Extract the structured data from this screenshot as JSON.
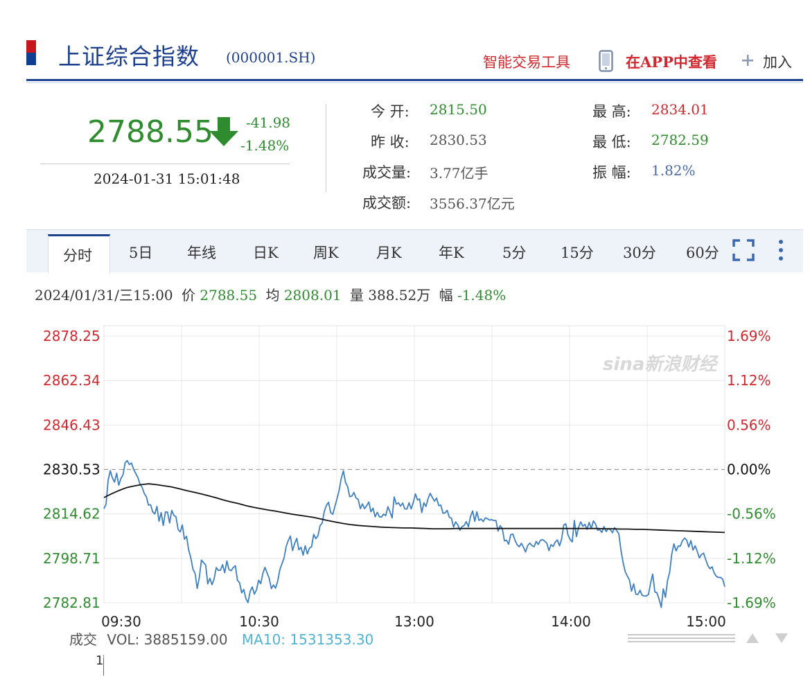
{
  "header": {
    "title": "上证综合指数",
    "code": "(000001.SH)",
    "smart_tool": "智能交易工具",
    "app_link": "在APP中查看",
    "add": "加入"
  },
  "quote": {
    "price": "2788.55",
    "change": "-41.98",
    "change_pct": "-1.48%",
    "time": "2024-01-31 15:01:48",
    "direction": "down"
  },
  "stats": {
    "open_label": "今 开:",
    "open_value": "2815.50",
    "prev_close_label": "昨 收:",
    "prev_close_value": "2830.53",
    "volume_label": "成交量:",
    "volume_value": "3.77亿手",
    "amount_label": "成交额:",
    "amount_value": "3556.37亿元",
    "high_label": "最 高:",
    "high_value": "2834.01",
    "low_label": "最 低:",
    "low_value": "2782.59",
    "amplitude_label": "振 幅:",
    "amplitude_value": "1.82%"
  },
  "tabs": [
    {
      "label": "分时",
      "active": true
    },
    {
      "label": "5日"
    },
    {
      "label": "年线"
    },
    {
      "label": "日K"
    },
    {
      "label": "周K"
    },
    {
      "label": "月K"
    },
    {
      "label": "年K"
    },
    {
      "label": "5分"
    },
    {
      "label": "15分"
    },
    {
      "label": "30分"
    },
    {
      "label": "60分"
    }
  ],
  "info_line": {
    "datetime": "2024/01/31/三15:00",
    "price_label": "价",
    "price": "2788.55",
    "avg_label": "均",
    "avg": "2808.01",
    "vol_label": "量",
    "vol": "388.52万",
    "amp_label": "幅",
    "amp": "-1.48%"
  },
  "volume": {
    "label": "成交",
    "vol_text": "VOL: 3885159.00",
    "ma_text": "MA10: 1531353.30",
    "scale": "1"
  },
  "watermark": "sina新浪财经",
  "colors": {
    "up": "#d0282e",
    "down": "#2e8b2e",
    "brand": "#1c3f8e",
    "price_line": "#3d7fc1",
    "avg_line": "#111111"
  },
  "chart_data": {
    "type": "line",
    "title": "",
    "x_labels": [
      "09:30",
      "10:30",
      "13:00",
      "14:00",
      "15:00"
    ],
    "y_ticks_left": [
      "2878.25",
      "2862.34",
      "2846.43",
      "2830.53",
      "2814.62",
      "2798.71",
      "2782.81"
    ],
    "y_ticks_right": [
      "1.69%",
      "1.12%",
      "0.56%",
      "0.00%",
      "-0.56%",
      "-1.12%",
      "-1.69%"
    ],
    "ylim": [
      2782.81,
      2878.25
    ],
    "prev_close": 2830.53,
    "series": [
      {
        "name": "价",
        "values": [
          2816.5,
          2818.2,
          2826.8,
          2830.1,
          2827.5,
          2826.0,
          2829.2,
          2824.9,
          2827.3,
          2828.6,
          2832.9,
          2833.7,
          2832.3,
          2832.8,
          2830.6,
          2829.1,
          2827.7,
          2825.3,
          2824.2,
          2822.0,
          2820.8,
          2817.8,
          2817.9,
          2815.4,
          2814.6,
          2817.3,
          2812.0,
          2815.1,
          2810.5,
          2815.3,
          2815.3,
          2811.4,
          2815.9,
          2814.1,
          2813.6,
          2809.1,
          2808.2,
          2810.7,
          2805.6,
          2806.6,
          2801.7,
          2798.9,
          2794.9,
          2793.4,
          2788.0,
          2791.8,
          2798.1,
          2797.2,
          2796.4,
          2789.6,
          2791.6,
          2789.3,
          2791.4,
          2795.4,
          2794.4,
          2794.5,
          2796.5,
          2793.6,
          2797.8,
          2794.7,
          2794.3,
          2795.4,
          2796.1,
          2790.9,
          2790.0,
          2786.4,
          2787.6,
          2784.3,
          2782.9,
          2786.9,
          2788.5,
          2785.9,
          2787.5,
          2790.9,
          2789.7,
          2793.4,
          2795.5,
          2793.5,
          2791.6,
          2787.9,
          2789.2,
          2788.1,
          2790.6,
          2794.6,
          2796.8,
          2798.8,
          2803.0,
          2805.1,
          2806.7,
          2801.5,
          2804.0,
          2805.9,
          2801.8,
          2802.7,
          2799.9,
          2803.2,
          2800.3,
          2802.4,
          2802.9,
          2807.3,
          2805.8,
          2806.8,
          2810.4,
          2811.4,
          2815.5,
          2817.7,
          2818.8,
          2815.1,
          2814.5,
          2817.3,
          2820.1,
          2823.0,
          2827.4,
          2830.0,
          2825.9,
          2824.4,
          2820.8,
          2821.0,
          2822.3,
          2820.3,
          2819.8,
          2816.5,
          2818.2,
          2816.5,
          2817.6,
          2818.9,
          2815.4,
          2816.7,
          2813.6,
          2815.2,
          2813.6,
          2813.5,
          2814.6,
          2814.0,
          2817.2,
          2815.4,
          2813.2,
          2820.7,
          2818.1,
          2818.6,
          2817.4,
          2818.5,
          2816.4,
          2816.4,
          2818.6,
          2816.4,
          2818.8,
          2821.8,
          2819.6,
          2820.0,
          2815.1,
          2818.6,
          2817.3,
          2820.2,
          2822.0,
          2820.5,
          2819.2,
          2820.3,
          2817.6,
          2817.8,
          2814.9,
          2815.0,
          2815.9,
          2813.4,
          2813.1,
          2809.9,
          2811.8,
          2810.7,
          2808.8,
          2810.1,
          2810.5,
          2811.9,
          2810.0,
          2813.7,
          2815.7,
          2812.0,
          2815.4,
          2812.3,
          2812.8,
          2811.9,
          2813.2,
          2812.9,
          2812.4,
          2812.6,
          2812.2,
          2812.3,
          2808.5,
          2810.4,
          2809.4,
          2805.0,
          2805.2,
          2803.8,
          2807.2,
          2807.4,
          2805.2,
          2803.6,
          2802.9,
          2804.1,
          2802.7,
          2801.0,
          2803.3,
          2804.2,
          2803.3,
          2802.9,
          2804.8,
          2803.7,
          2805.2,
          2805.4,
          2804.9,
          2804.2,
          2801.5,
          2803.6,
          2803.0,
          2804.6,
          2805.3,
          2803.2,
          2805.6,
          2810.7,
          2811.1,
          2807.1,
          2805.5,
          2804.6,
          2812.3,
          2806.5,
          2809.8,
          2811.8,
          2810.2,
          2810.9,
          2809.1,
          2811.6,
          2809.4,
          2812.1,
          2811.0,
          2808.8,
          2809.0,
          2808.0,
          2810.1,
          2808.3,
          2809.4,
          2809.0,
          2807.9,
          2809.7,
          2808.7,
          2807.5,
          2801.6,
          2797.3,
          2794.0,
          2792.4,
          2791.0,
          2787.0,
          2789.6,
          2785.9,
          2785.8,
          2787.3,
          2785.5,
          2785.3,
          2785.3,
          2785.8,
          2790.0,
          2793.1,
          2786.7,
          2786.4,
          2784.1,
          2781.2,
          2787.8,
          2784.8,
          2790.8,
          2793.8,
          2800.3,
          2803.9,
          2801.4,
          2803.1,
          2803.1,
          2805.0,
          2806.0,
          2805.3,
          2802.8,
          2805.1,
          2801.7,
          2803.2,
          2801.3,
          2798.9,
          2800.1,
          2800.6,
          2798.3,
          2796.2,
          2795.0,
          2795.7,
          2793.5,
          2792.3,
          2791.9,
          2791.9,
          2791.3,
          2788.6
        ]
      },
      {
        "name": "均",
        "values": [
          2820.5,
          2821.8,
          2823.0,
          2824.0,
          2824.6,
          2825.1,
          2825.4,
          2825.1,
          2824.7,
          2824.3,
          2823.7,
          2823.0,
          2822.4,
          2821.8,
          2821.1,
          2820.4,
          2819.6,
          2818.9,
          2818.3,
          2817.6,
          2817.0,
          2816.5,
          2816.0,
          2815.6,
          2815.1,
          2814.6,
          2814.2,
          2813.8,
          2813.4,
          2812.8,
          2812.2,
          2811.7,
          2811.2,
          2810.8,
          2810.5,
          2810.3,
          2810.1,
          2809.9,
          2809.8,
          2809.7,
          2809.6,
          2809.6,
          2809.5,
          2809.4,
          2809.3,
          2809.3,
          2809.3,
          2809.4,
          2809.4,
          2809.4,
          2809.4,
          2809.4,
          2809.4,
          2809.4,
          2809.4,
          2809.4,
          2809.4,
          2809.4,
          2809.4,
          2809.4,
          2809.4,
          2809.4,
          2809.4,
          2809.4,
          2809.4,
          2809.4,
          2809.4,
          2809.3,
          2809.3,
          2809.2,
          2809.2,
          2809.1,
          2809.1,
          2809.0,
          2808.9,
          2808.8,
          2808.7,
          2808.6,
          2808.5,
          2808.4,
          2808.3,
          2808.2,
          2808.1,
          2808.0
        ]
      }
    ],
    "x_session_labels": [
      "09:30",
      "10:30",
      "13:00",
      "14:00",
      "15:00"
    ],
    "grid": true
  }
}
